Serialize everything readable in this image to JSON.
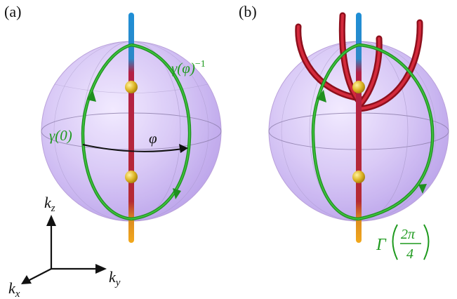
{
  "panels": {
    "a": {
      "label": "(a)"
    },
    "b": {
      "label": "(b)"
    }
  },
  "labels": {
    "gamma_inverse_main": "γ(φ)",
    "gamma_inverse_sup": "−1",
    "gamma_zero": "γ(0)",
    "phi": "φ",
    "big_gamma": "Γ",
    "frac_num": "2π",
    "frac_den": "4"
  },
  "axes": {
    "kz_main": "k",
    "kz_sub": "z",
    "kx_main": "k",
    "kx_sub": "x",
    "ky_main": "k",
    "ky_sub": "y"
  },
  "colors": {
    "sphere_fill": "#c9b4f2",
    "sphere_edge": "#b59ad8",
    "loop_green": "#22a322",
    "rod_blue": "#2a8fd0",
    "rod_red": "#b41e3a",
    "rod_orange": "#e39a1e",
    "node_yellow": "#d9b21f",
    "tube_red": "#c01828"
  }
}
